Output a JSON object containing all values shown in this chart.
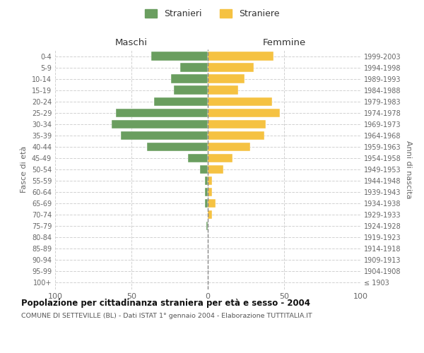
{
  "age_groups": [
    "100+",
    "95-99",
    "90-94",
    "85-89",
    "80-84",
    "75-79",
    "70-74",
    "65-69",
    "60-64",
    "55-59",
    "50-54",
    "45-49",
    "40-44",
    "35-39",
    "30-34",
    "25-29",
    "20-24",
    "15-19",
    "10-14",
    "5-9",
    "0-4"
  ],
  "birth_years": [
    "≤ 1903",
    "1904-1908",
    "1909-1913",
    "1914-1918",
    "1919-1923",
    "1924-1928",
    "1929-1933",
    "1934-1938",
    "1939-1943",
    "1944-1948",
    "1949-1953",
    "1954-1958",
    "1959-1963",
    "1964-1968",
    "1969-1973",
    "1974-1978",
    "1979-1983",
    "1984-1988",
    "1989-1993",
    "1994-1998",
    "1999-2003"
  ],
  "maschi": [
    0,
    0,
    0,
    0,
    0,
    1,
    0,
    2,
    2,
    2,
    5,
    13,
    40,
    57,
    63,
    60,
    35,
    22,
    24,
    18,
    37
  ],
  "femmine": [
    0,
    0,
    0,
    0,
    0,
    0,
    3,
    5,
    3,
    3,
    10,
    16,
    28,
    37,
    38,
    47,
    42,
    20,
    24,
    30,
    43
  ],
  "color_maschi": "#6a9e5f",
  "color_femmine": "#f5c242",
  "title": "Popolazione per cittadinanza straniera per età e sesso - 2004",
  "subtitle": "COMUNE DI SETTEVILLE (BL) - Dati ISTAT 1° gennaio 2004 - Elaborazione TUTTITALIA.IT",
  "xlabel_left": "Maschi",
  "xlabel_right": "Femmine",
  "ylabel_left": "Fasce di età",
  "ylabel_right": "Anni di nascita",
  "xlim": 100,
  "legend_maschi": "Stranieri",
  "legend_femmine": "Straniere",
  "bg_color": "#ffffff",
  "grid_color": "#cccccc",
  "dashed_center_color": "#888888"
}
